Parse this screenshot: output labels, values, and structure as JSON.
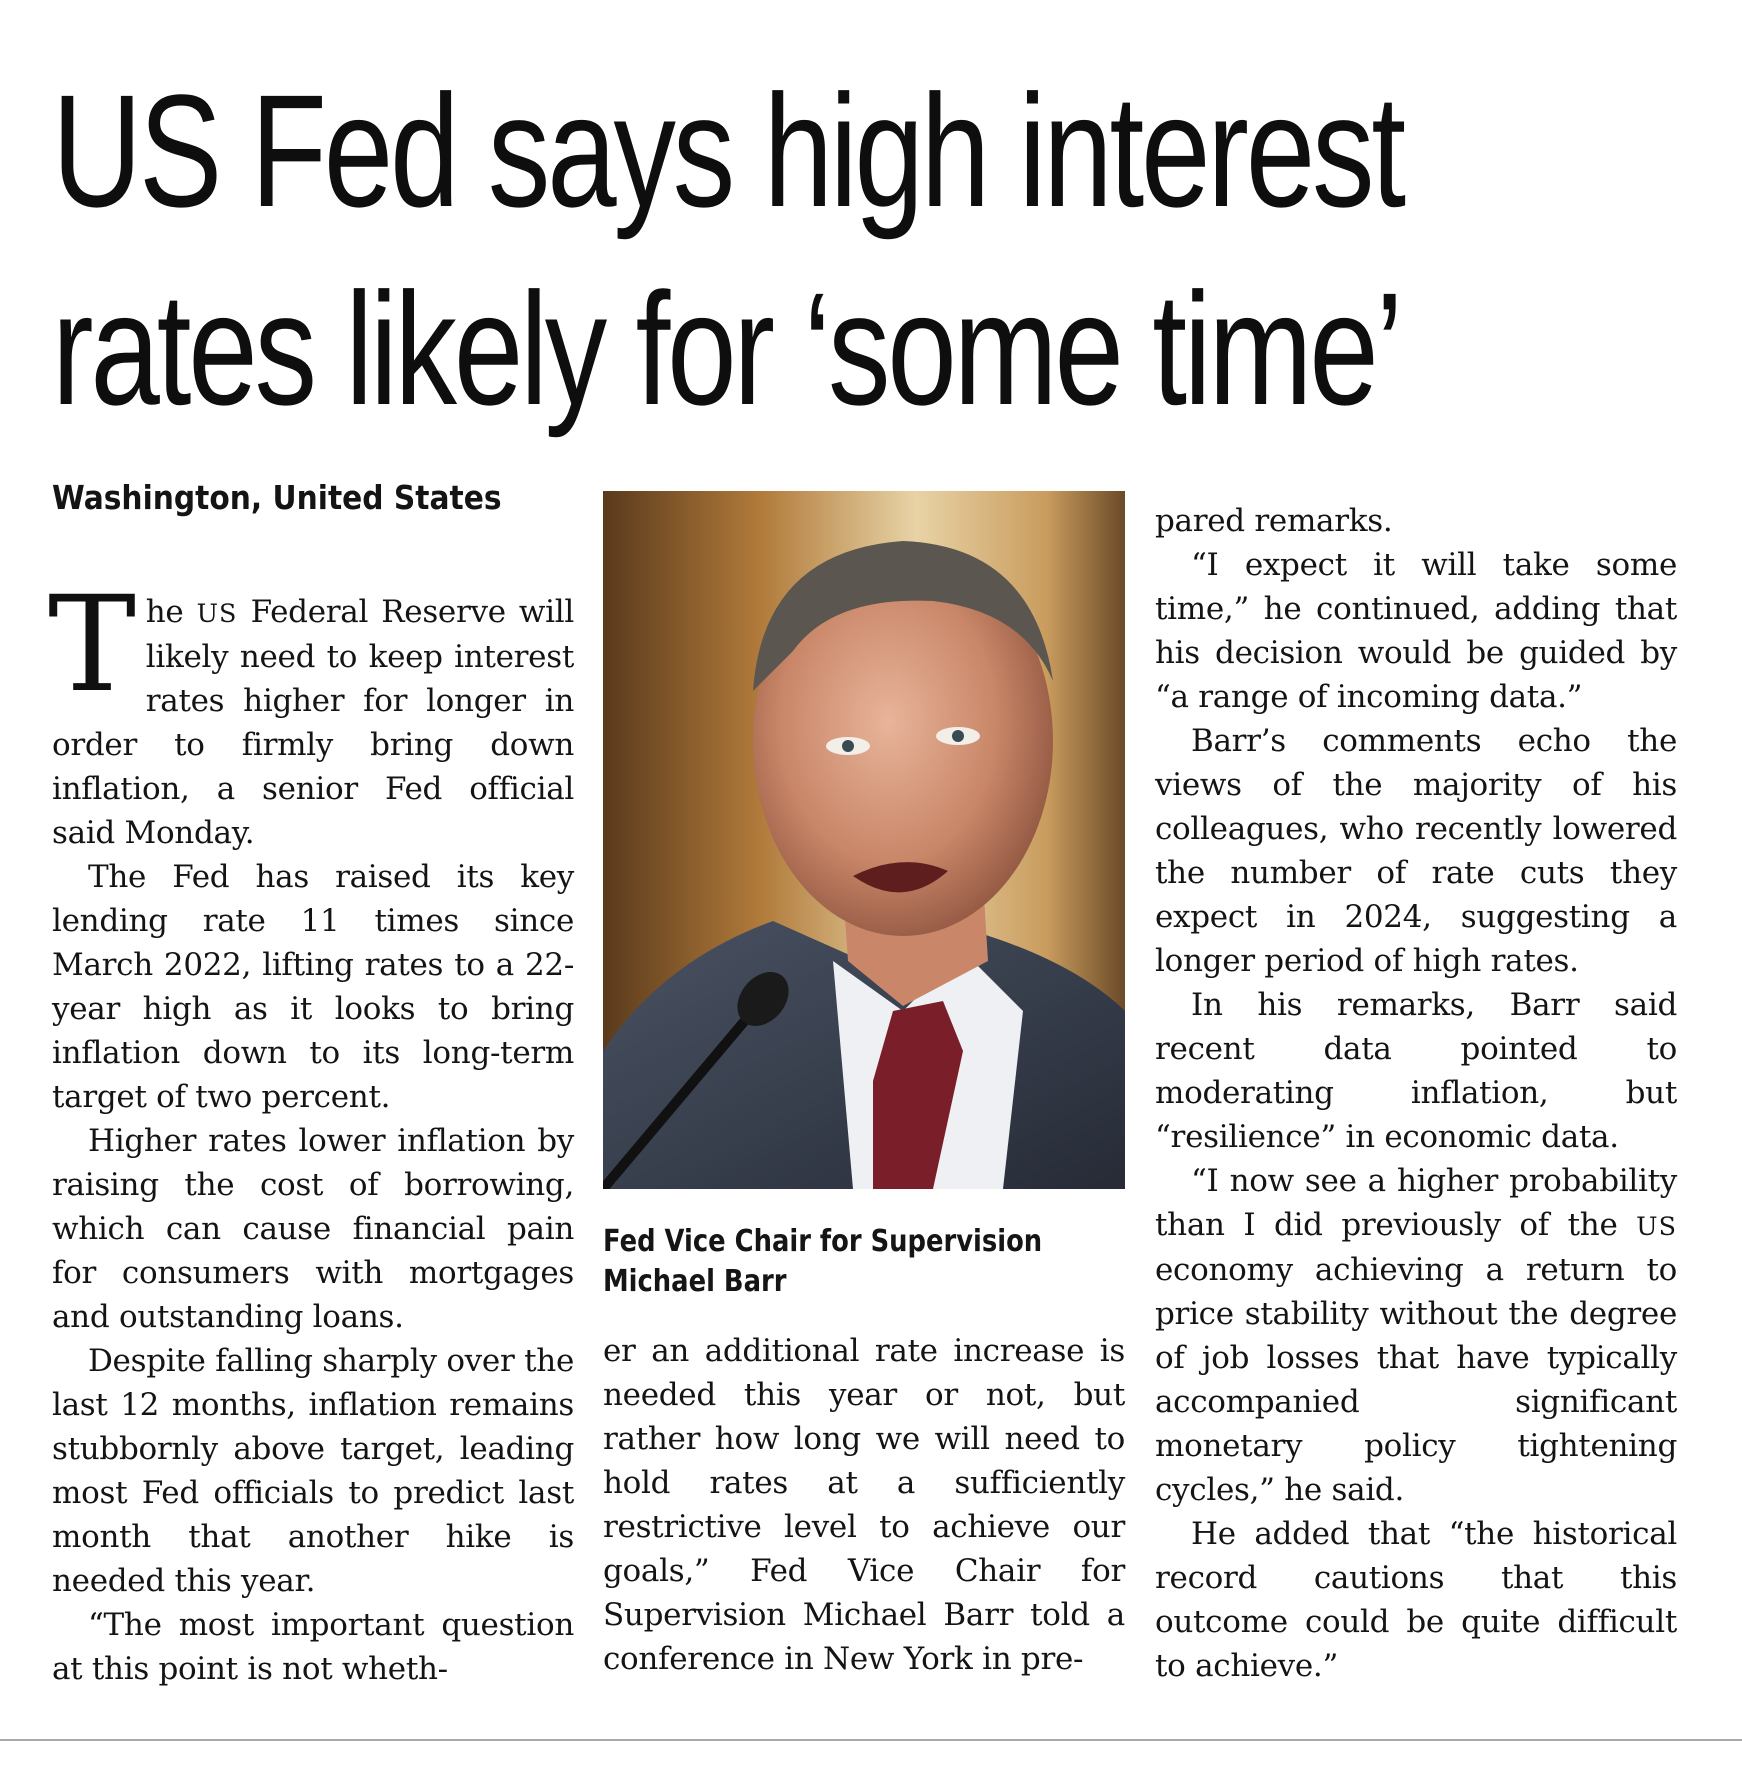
{
  "article": {
    "headline_line1": "US Fed says high interest",
    "headline_line2": "rates likely for ‘some time’",
    "dateline": "Washington, United States",
    "dropcap": "T",
    "p1_rest_a": "he ",
    "p1_sc": "US",
    "p1_rest_b": " Federal Reserve will likely need to keep interest rates higher for longer in order to firmly bring down inflation, a senior Fed official said Monday.",
    "p2": "The Fed has raised its key lending rate 11 times since March 2022, lifting rates to a 22-year high as it looks to bring inflation down to its long-term target of two percent.",
    "p3": "Higher rates lower inflation by raising the cost of borrowing, which can cause financial pain for consumers with mortgages and outstanding loans.",
    "p4": "Despite falling sharply over the last 12 months, inflation remains stubbornly above target, leading most Fed officials to predict last month that another hike is needed this year.",
    "p5_col1": "“The most important question at this point is not wheth-",
    "p5_col2": "er an additional rate increase is needed this year or not, but rather how long we will need to hold rates at a sufficiently restrictive level to achieve our goals,” Fed Vice Chair for Supervision Michael Barr told a conference in New York in pre-",
    "p5_col3": "pared remarks.",
    "p6": "“I expect it will take some time,” he continued, adding that his decision would be guided by “a range of incoming data.”",
    "p7": "Barr’s comments echo the views of the majority of his colleagues, who recently lowered the number of rate cuts they expect in 2024, suggesting a longer period of high rates.",
    "p8": "In his remarks, Barr said recent data pointed to moderating inflation, but “resilience” in economic data.",
    "p9_a": "“I now see a higher probability than I did previously of the ",
    "p9_sc": "US",
    "p9_b": " economy achieving a return to price stability without the degree of job losses that have typically accompanied significant monetary policy tightening cycles,” he said.",
    "p10": "He added that “the historical record cautions that this outcome could be quite difficult to achieve.”",
    "caption": "Fed Vice Chair for Supervision Michael Barr"
  }
}
